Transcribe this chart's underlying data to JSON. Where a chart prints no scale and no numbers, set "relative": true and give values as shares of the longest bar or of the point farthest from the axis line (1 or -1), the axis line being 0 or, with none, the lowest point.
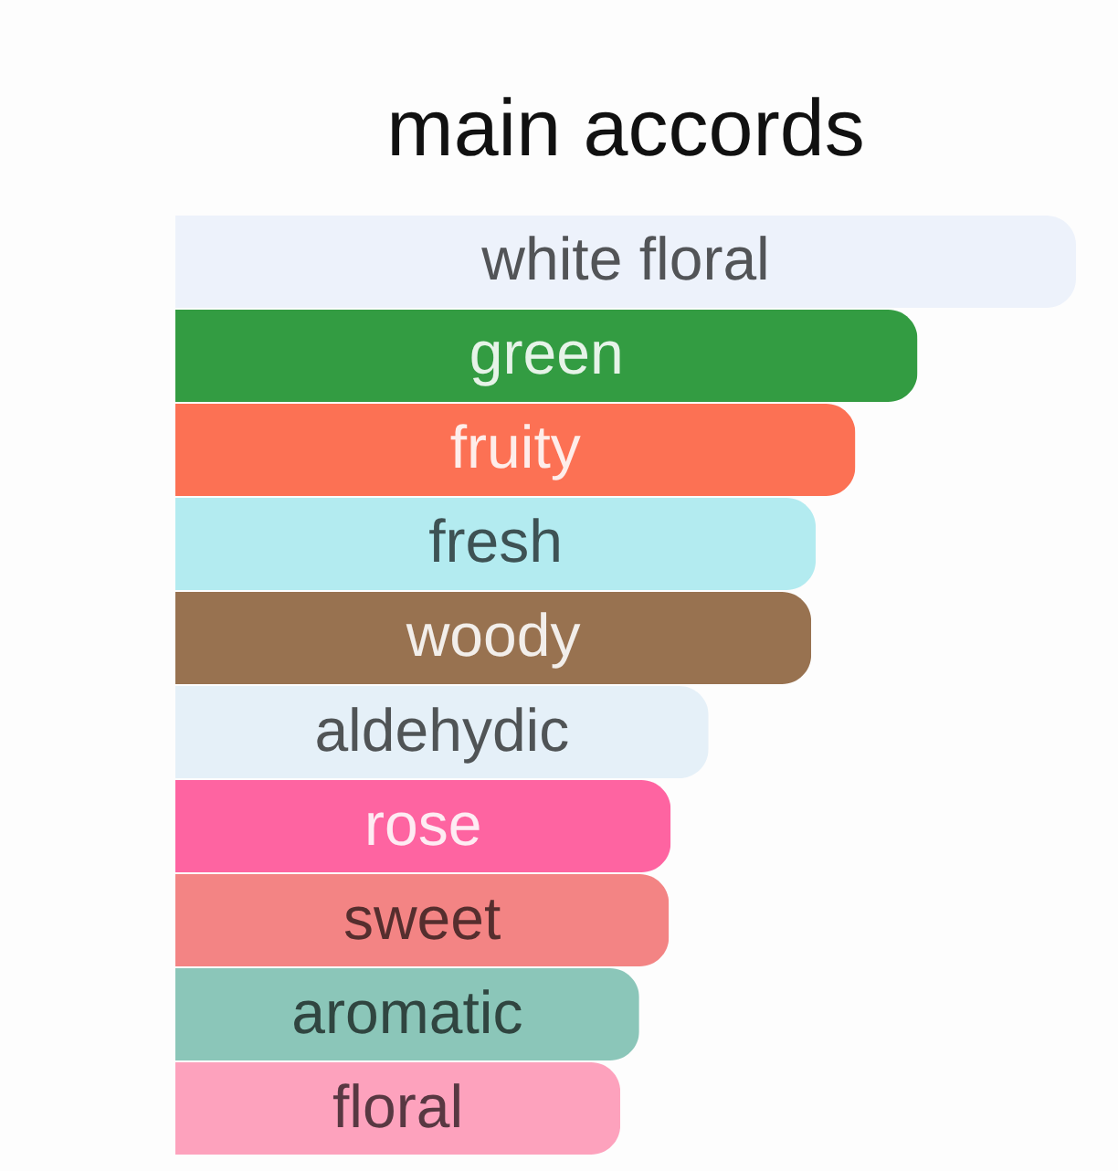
{
  "chart_data": {
    "type": "bar",
    "orientation": "horizontal",
    "relative": true,
    "title": "main accords",
    "categories": [
      "white floral",
      "green",
      "fruity",
      "fresh",
      "woody",
      "aldehydic",
      "rose",
      "sweet",
      "aromatic",
      "floral"
    ],
    "values": [
      1,
      0.824,
      0.755,
      0.711,
      0.706,
      0.592,
      0.55,
      0.548,
      0.515,
      0.494
    ],
    "colors": [
      "#edf2fb",
      "#339c42",
      "#fc7154",
      "#b3ebf0",
      "#987250",
      "#e5f0f8",
      "#fe64a1",
      "#f38484",
      "#8bc6b9",
      "#fda2bd"
    ]
  }
}
